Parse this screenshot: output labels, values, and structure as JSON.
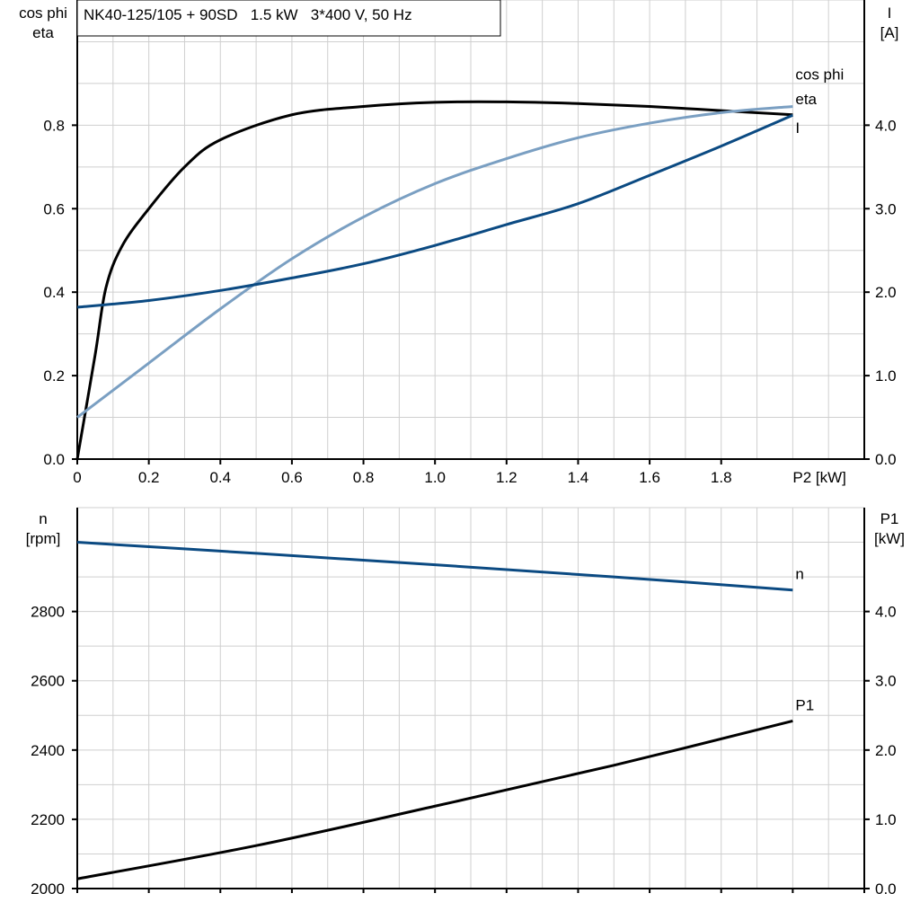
{
  "chart_data": [
    {
      "type": "line",
      "title": "NK40-125/105 + 90SD   1.5 kW   3*400 V, 50 Hz",
      "xlabel": "P2 [kW]",
      "ylabel_left": [
        "cos phi",
        "eta"
      ],
      "ylabel_right": [
        "I",
        "[A]"
      ],
      "xlim": [
        0,
        2.2
      ],
      "ylim_left": [
        0,
        1.1
      ],
      "ylim_right": [
        0,
        5.5
      ],
      "x_ticks": [
        "0",
        "0.2",
        "0.4",
        "0.6",
        "0.8",
        "1.0",
        "1.2",
        "1.4",
        "1.6",
        "1.8"
      ],
      "y_ticks_left": [
        "0.0",
        "0.2",
        "0.4",
        "0.6",
        "0.8"
      ],
      "y_ticks_right": [
        "0.0",
        "1.0",
        "2.0",
        "3.0",
        "4.0"
      ],
      "grid": true,
      "series": [
        {
          "name": "eta",
          "axis": "left",
          "color": "#000000",
          "x": [
            0,
            0.05,
            0.08,
            0.125,
            0.2,
            0.3,
            0.4,
            0.6,
            0.8,
            1.0,
            1.2,
            1.4,
            1.6,
            1.8,
            2.0
          ],
          "y": [
            0,
            0.25,
            0.41,
            0.51,
            0.6,
            0.7,
            0.765,
            0.825,
            0.845,
            0.855,
            0.856,
            0.852,
            0.845,
            0.835,
            0.825
          ]
        },
        {
          "name": "cos phi",
          "axis": "left",
          "color": "#7a9fc2",
          "x": [
            0,
            0.2,
            0.4,
            0.6,
            0.8,
            1.0,
            1.2,
            1.4,
            1.6,
            1.8,
            2.0
          ],
          "y": [
            0.1,
            0.23,
            0.36,
            0.48,
            0.58,
            0.66,
            0.72,
            0.77,
            0.805,
            0.83,
            0.845
          ]
        },
        {
          "name": "I",
          "axis": "right",
          "color": "#0b4a82",
          "x": [
            0,
            0.2,
            0.4,
            0.6,
            0.8,
            1.0,
            1.2,
            1.4,
            1.6,
            1.8,
            2.0
          ],
          "y": [
            1.82,
            1.9,
            2.02,
            2.17,
            2.34,
            2.56,
            2.81,
            3.06,
            3.4,
            3.75,
            4.12
          ]
        }
      ]
    },
    {
      "type": "line",
      "xlim": [
        0,
        2.2
      ],
      "ylabel_left": [
        "n",
        "[rpm]"
      ],
      "ylabel_right": [
        "P1",
        "[kW]"
      ],
      "ylim_left": [
        2000,
        3100
      ],
      "ylim_right": [
        0,
        5.5
      ],
      "y_ticks_left": [
        "2000",
        "2200",
        "2400",
        "2600",
        "2800"
      ],
      "y_ticks_right": [
        "0.0",
        "1.0",
        "2.0",
        "3.0",
        "4.0"
      ],
      "grid": true,
      "series": [
        {
          "name": "n",
          "axis": "left",
          "color": "#0b4a82",
          "x": [
            0,
            0.5,
            1.0,
            1.5,
            2.0
          ],
          "y": [
            3000,
            2968,
            2935,
            2900,
            2862
          ]
        },
        {
          "name": "P1",
          "axis": "right",
          "color": "#000000",
          "x": [
            0,
            0.5,
            1.0,
            1.5,
            2.0
          ],
          "y": [
            0.14,
            0.62,
            1.19,
            1.78,
            2.42
          ]
        }
      ]
    }
  ]
}
